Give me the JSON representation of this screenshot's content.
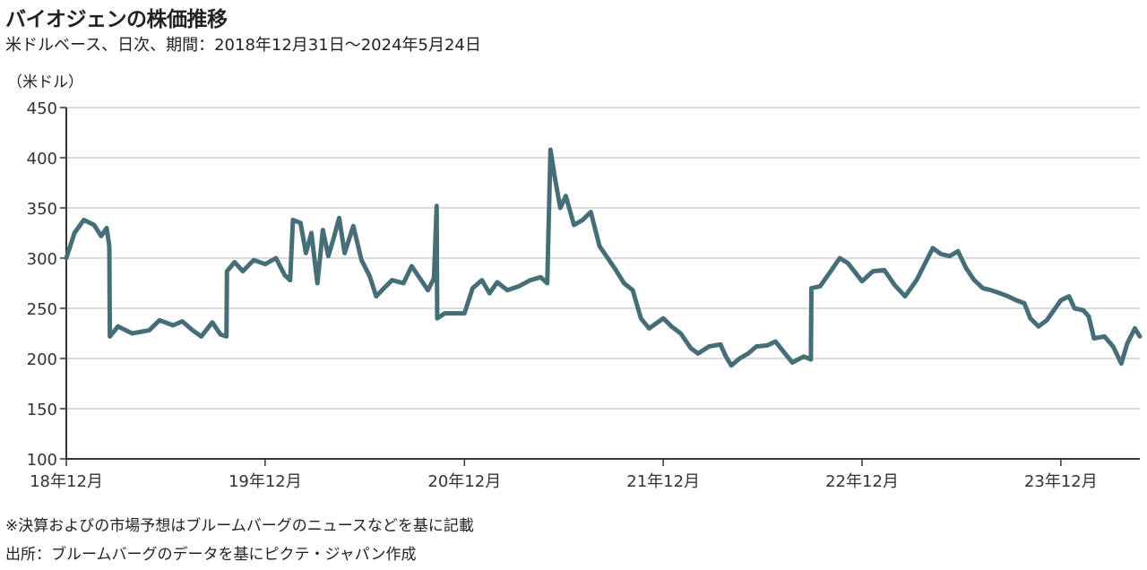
{
  "header": {
    "title": "バイオジェンの株価推移",
    "subtitle": "米ドルベース、日次、期間：2018年12月31日～2024年5月24日",
    "unit": "（米ドル）"
  },
  "notes": {
    "note1": "※決算およびの市場予想はブルームバーグのニュースなどを基に記載",
    "note2": "出所：ブルームバーグのデータを基にピクテ・ジャパン作成"
  },
  "colors": {
    "line": "#466e76",
    "grid": "#d0d0d0",
    "axis": "#333333"
  },
  "chart_data": {
    "type": "line",
    "title": "バイオジェンの株価推移",
    "subtitle": "米ドルベース、日次、期間：2018年12月31日～2024年5月24日",
    "ylabel": "（米ドル）",
    "ylim": [
      100,
      450
    ],
    "yticks": [
      100,
      150,
      200,
      250,
      300,
      350,
      400,
      450
    ],
    "xlim": [
      "2018-12-31",
      "2024-05-24"
    ],
    "xticks": [
      {
        "date": "2018-12-31",
        "label": "18年12月"
      },
      {
        "date": "2019-12-31",
        "label": "19年12月"
      },
      {
        "date": "2020-12-31",
        "label": "20年12月"
      },
      {
        "date": "2021-12-31",
        "label": "21年12月"
      },
      {
        "date": "2022-12-31",
        "label": "22年12月"
      },
      {
        "date": "2023-12-31",
        "label": "23年12月"
      }
    ],
    "grid": true,
    "series": [
      {
        "points": [
          [
            "2018-12-31",
            300
          ],
          [
            "2019-01-15",
            325
          ],
          [
            "2019-02-01",
            338
          ],
          [
            "2019-02-20",
            333
          ],
          [
            "2019-03-05",
            322
          ],
          [
            "2019-03-15",
            330
          ],
          [
            "2019-03-20",
            312
          ],
          [
            "2019-03-21",
            222
          ],
          [
            "2019-04-05",
            232
          ],
          [
            "2019-05-01",
            225
          ],
          [
            "2019-06-01",
            228
          ],
          [
            "2019-06-20",
            238
          ],
          [
            "2019-07-15",
            233
          ],
          [
            "2019-08-01",
            237
          ],
          [
            "2019-08-20",
            228
          ],
          [
            "2019-09-05",
            222
          ],
          [
            "2019-09-25",
            236
          ],
          [
            "2019-10-10",
            224
          ],
          [
            "2019-10-21",
            222
          ],
          [
            "2019-10-22",
            287
          ],
          [
            "2019-11-05",
            296
          ],
          [
            "2019-11-20",
            287
          ],
          [
            "2019-12-10",
            298
          ],
          [
            "2019-12-31",
            294
          ],
          [
            "2020-01-20",
            300
          ],
          [
            "2020-02-05",
            283
          ],
          [
            "2020-02-15",
            278
          ],
          [
            "2020-02-20",
            338
          ],
          [
            "2020-03-05",
            335
          ],
          [
            "2020-03-15",
            305
          ],
          [
            "2020-03-25",
            325
          ],
          [
            "2020-04-05",
            275
          ],
          [
            "2020-04-15",
            328
          ],
          [
            "2020-04-25",
            302
          ],
          [
            "2020-05-05",
            320
          ],
          [
            "2020-05-15",
            340
          ],
          [
            "2020-05-25",
            305
          ],
          [
            "2020-06-10",
            332
          ],
          [
            "2020-06-25",
            298
          ],
          [
            "2020-07-10",
            282
          ],
          [
            "2020-07-22",
            262
          ],
          [
            "2020-08-05",
            270
          ],
          [
            "2020-08-20",
            278
          ],
          [
            "2020-09-10",
            275
          ],
          [
            "2020-09-25",
            292
          ],
          [
            "2020-10-10",
            280
          ],
          [
            "2020-10-25",
            268
          ],
          [
            "2020-11-05",
            280
          ],
          [
            "2020-11-10",
            352
          ],
          [
            "2020-11-11",
            240
          ],
          [
            "2020-11-25",
            245
          ],
          [
            "2020-12-31",
            245
          ],
          [
            "2021-01-15",
            270
          ],
          [
            "2021-02-01",
            278
          ],
          [
            "2021-02-15",
            265
          ],
          [
            "2021-03-01",
            276
          ],
          [
            "2021-03-20",
            268
          ],
          [
            "2021-04-10",
            272
          ],
          [
            "2021-05-01",
            278
          ],
          [
            "2021-05-20",
            281
          ],
          [
            "2021-06-01",
            275
          ],
          [
            "2021-06-07",
            408
          ],
          [
            "2021-06-15",
            380
          ],
          [
            "2021-06-25",
            350
          ],
          [
            "2021-07-05",
            362
          ],
          [
            "2021-07-20",
            333
          ],
          [
            "2021-08-05",
            338
          ],
          [
            "2021-08-20",
            346
          ],
          [
            "2021-09-05",
            312
          ],
          [
            "2021-09-20",
            300
          ],
          [
            "2021-10-05",
            288
          ],
          [
            "2021-10-20",
            275
          ],
          [
            "2021-11-05",
            268
          ],
          [
            "2021-11-20",
            240
          ],
          [
            "2021-12-05",
            230
          ],
          [
            "2021-12-31",
            240
          ],
          [
            "2022-01-15",
            232
          ],
          [
            "2022-02-01",
            225
          ],
          [
            "2022-02-20",
            210
          ],
          [
            "2022-03-05",
            205
          ],
          [
            "2022-03-25",
            212
          ],
          [
            "2022-04-15",
            214
          ],
          [
            "2022-04-25",
            202
          ],
          [
            "2022-05-05",
            193
          ],
          [
            "2022-05-20",
            200
          ],
          [
            "2022-06-05",
            205
          ],
          [
            "2022-06-20",
            212
          ],
          [
            "2022-07-10",
            213
          ],
          [
            "2022-07-25",
            217
          ],
          [
            "2022-08-10",
            206
          ],
          [
            "2022-08-25",
            196
          ],
          [
            "2022-09-15",
            202
          ],
          [
            "2022-09-28",
            199
          ],
          [
            "2022-09-29",
            270
          ],
          [
            "2022-10-15",
            272
          ],
          [
            "2022-11-01",
            285
          ],
          [
            "2022-11-20",
            300
          ],
          [
            "2022-12-05",
            295
          ],
          [
            "2022-12-31",
            277
          ],
          [
            "2023-01-20",
            287
          ],
          [
            "2023-02-10",
            288
          ],
          [
            "2023-03-01",
            273
          ],
          [
            "2023-03-20",
            262
          ],
          [
            "2023-04-10",
            278
          ],
          [
            "2023-04-25",
            294
          ],
          [
            "2023-05-10",
            310
          ],
          [
            "2023-05-25",
            304
          ],
          [
            "2023-06-10",
            302
          ],
          [
            "2023-06-25",
            307
          ],
          [
            "2023-07-10",
            290
          ],
          [
            "2023-07-25",
            278
          ],
          [
            "2023-08-10",
            270
          ],
          [
            "2023-08-25",
            268
          ],
          [
            "2023-09-10",
            265
          ],
          [
            "2023-09-25",
            262
          ],
          [
            "2023-10-10",
            258
          ],
          [
            "2023-10-25",
            255
          ],
          [
            "2023-11-05",
            240
          ],
          [
            "2023-11-20",
            232
          ],
          [
            "2023-12-05",
            238
          ],
          [
            "2023-12-31",
            258
          ],
          [
            "2024-01-15",
            262
          ],
          [
            "2024-01-25",
            250
          ],
          [
            "2024-02-10",
            248
          ],
          [
            "2024-02-20",
            242
          ],
          [
            "2024-03-01",
            220
          ],
          [
            "2024-03-20",
            222
          ],
          [
            "2024-04-05",
            212
          ],
          [
            "2024-04-20",
            195
          ],
          [
            "2024-05-01",
            215
          ],
          [
            "2024-05-15",
            230
          ],
          [
            "2024-05-24",
            222
          ]
        ]
      }
    ]
  }
}
